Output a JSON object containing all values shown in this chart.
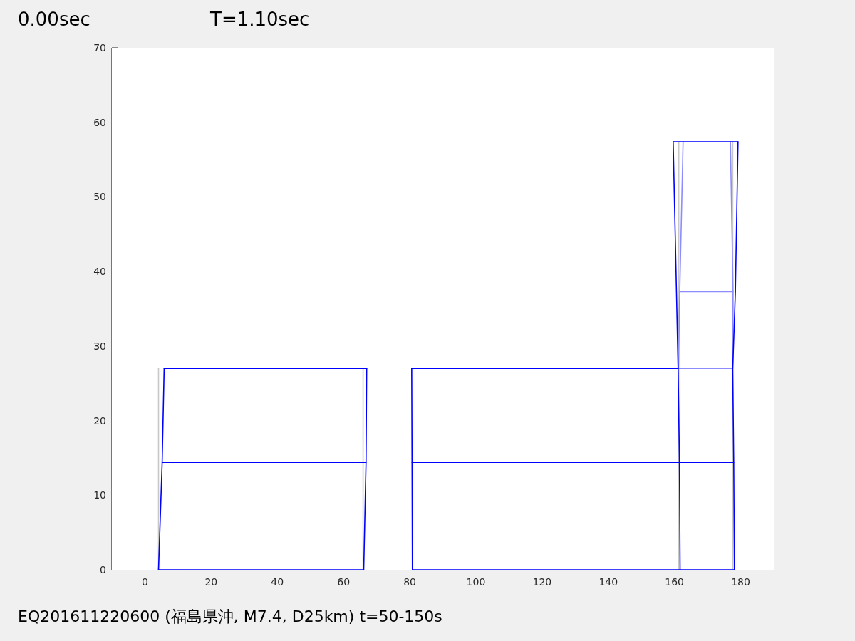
{
  "chart_data": {
    "type": "line",
    "annotations": [
      "0.00sec",
      "T=1.10sec",
      "EQ201611220600 (福島県沖, M7.4, D25km) t=50-150s"
    ],
    "xlim": [
      -10,
      190
    ],
    "ylim": [
      0,
      70
    ],
    "xticks": [
      0,
      20,
      40,
      60,
      80,
      100,
      120,
      140,
      160,
      180
    ],
    "yticks": [
      0,
      10,
      20,
      30,
      40,
      50,
      60,
      70
    ],
    "series": [
      {
        "color": "#c8c8c8",
        "x": [
          4.1,
          4.1
        ],
        "values": [
          0,
          27
        ]
      },
      {
        "color": "#c8c8c8",
        "x": [
          65.9,
          65.9
        ],
        "values": [
          0,
          27
        ]
      },
      {
        "color": "#c8c8c8",
        "x": [
          161.3,
          161.3
        ],
        "values": [
          0,
          57.4
        ]
      },
      {
        "color": "#c8c8c8",
        "x": [
          177.6,
          177.6
        ],
        "values": [
          0,
          57.4
        ]
      },
      {
        "color": "#8c8cff",
        "x": [
          161.2,
          161.6,
          162.6
        ],
        "values": [
          27,
          37.3,
          57.4
        ]
      },
      {
        "color": "#8c8cff",
        "x": [
          177.6,
          177.7,
          176.9
        ],
        "values": [
          27,
          37.3,
          57.4
        ]
      },
      {
        "color": "#8c8cff",
        "x": [
          161.6,
          177.7
        ],
        "values": [
          37.3,
          37.3
        ]
      },
      {
        "color": "#8c8cff",
        "x": [
          161.2,
          177.6
        ],
        "values": [
          27,
          27
        ]
      },
      {
        "color": "#0000ff",
        "x": [
          4.1,
          5.2,
          5.8
        ],
        "values": [
          0,
          14.4,
          27
        ]
      },
      {
        "color": "#0000ff",
        "x": [
          66.1,
          66.8,
          67.0
        ],
        "values": [
          0,
          14.4,
          27
        ]
      },
      {
        "color": "#0000ff",
        "x": [
          5.8,
          67.0
        ],
        "values": [
          27,
          27
        ]
      },
      {
        "color": "#0000ff",
        "x": [
          5.2,
          66.8
        ],
        "values": [
          14.4,
          14.4
        ]
      },
      {
        "color": "#0000ff",
        "x": [
          4.1,
          66.1
        ],
        "values": [
          0,
          0
        ]
      },
      {
        "color": "#0000ff",
        "x": [
          80.8,
          80.7,
          80.6
        ],
        "values": [
          0,
          14.4,
          27
        ]
      },
      {
        "color": "#0000ff",
        "x": [
          80.6,
          161.1
        ],
        "values": [
          27,
          27
        ]
      },
      {
        "color": "#0000ff",
        "x": [
          80.7,
          177.9
        ],
        "values": [
          14.4,
          14.4
        ]
      },
      {
        "color": "#0000ff",
        "x": [
          80.8,
          178.1
        ],
        "values": [
          0,
          0
        ]
      },
      {
        "color": "#0000ff",
        "x": [
          161.7,
          161.5,
          161.1,
          160.6,
          159.6
        ],
        "values": [
          0,
          14.4,
          27,
          37.3,
          57.4
        ]
      },
      {
        "color": "#0000ff",
        "x": [
          178.1,
          177.9,
          177.6,
          178.4,
          179.2
        ],
        "values": [
          0,
          14.4,
          27,
          37.3,
          57.4
        ]
      },
      {
        "color": "#0000ff",
        "x": [
          159.6,
          179.2
        ],
        "values": [
          57.4,
          57.4
        ]
      }
    ]
  }
}
